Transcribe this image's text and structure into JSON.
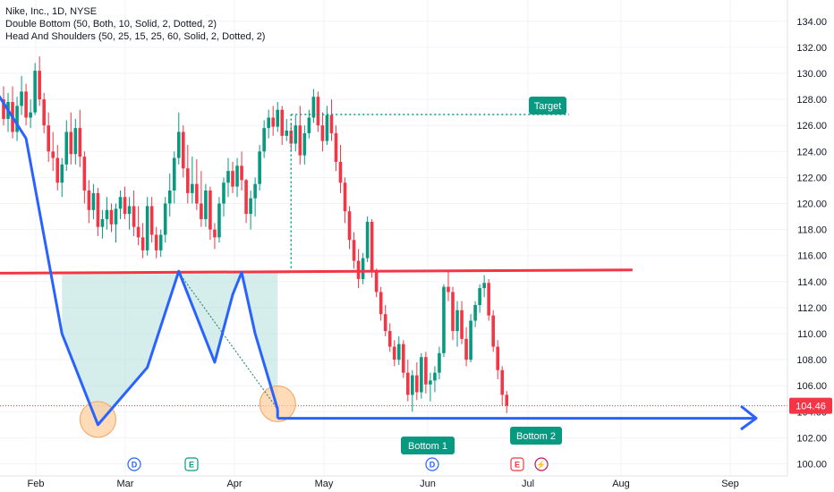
{
  "legend": {
    "title": "Nike, Inc., 1D, NYSE",
    "line1": "Double Bottom (50, Both, 10, Solid, 2, Dotted, 2)",
    "line2": "Head And Shoulders (50, 25, 15, 25, 60, Solid, 2, Dotted, 2)"
  },
  "colors": {
    "up": "#089981",
    "down": "#f23645",
    "pattern_line": "#2962ff",
    "neckline": "#f23645",
    "fill": "#b2dfdb",
    "pill": "#089981",
    "bottom_marker": "#ffcc99"
  },
  "chart_data": {
    "type": "candlestick",
    "title": "Nike, Inc., 1D, NYSE",
    "ylim": [
      99.3,
      135.0
    ],
    "y_ticks": [
      100,
      102,
      104,
      106,
      108,
      110,
      112,
      114,
      116,
      118,
      120,
      122,
      124,
      126,
      128,
      130,
      132,
      134
    ],
    "y_tick_labels": [
      "100.00",
      "102.00",
      "104.00",
      "106.00",
      "108.00",
      "110.00",
      "112.00",
      "114.00",
      "116.00",
      "118.00",
      "120.00",
      "122.00",
      "124.00",
      "126.00",
      "128.00",
      "130.00",
      "132.00",
      "134.00"
    ],
    "x_labels": [
      "Feb",
      "Mar",
      "Apr",
      "May",
      "Jun",
      "Jul",
      "Aug",
      "Sep"
    ],
    "last_price": 104.46,
    "last_price_label": "104.46",
    "candles": [
      {
        "o": 128.0,
        "h": 129.0,
        "l": 126.0,
        "c": 126.5
      },
      {
        "o": 126.5,
        "h": 128.5,
        "l": 125.5,
        "c": 127.8
      },
      {
        "o": 127.8,
        "h": 129.0,
        "l": 125.0,
        "c": 125.5
      },
      {
        "o": 125.5,
        "h": 128.2,
        "l": 124.8,
        "c": 127.5
      },
      {
        "o": 127.5,
        "h": 129.8,
        "l": 126.8,
        "c": 128.6
      },
      {
        "o": 128.6,
        "h": 129.2,
        "l": 126.0,
        "c": 126.6
      },
      {
        "o": 126.6,
        "h": 128.0,
        "l": 125.8,
        "c": 127.0
      },
      {
        "o": 127.0,
        "h": 130.8,
        "l": 126.8,
        "c": 130.2
      },
      {
        "o": 130.2,
        "h": 131.3,
        "l": 127.5,
        "c": 128.0
      },
      {
        "o": 128.0,
        "h": 128.5,
        "l": 125.4,
        "c": 126.0
      },
      {
        "o": 126.0,
        "h": 127.0,
        "l": 123.2,
        "c": 124.0
      },
      {
        "o": 124.0,
        "h": 125.5,
        "l": 122.5,
        "c": 123.5
      },
      {
        "o": 123.5,
        "h": 124.5,
        "l": 121.0,
        "c": 121.6
      },
      {
        "o": 121.6,
        "h": 123.5,
        "l": 120.5,
        "c": 123.0
      },
      {
        "o": 123.0,
        "h": 126.4,
        "l": 122.5,
        "c": 125.5
      },
      {
        "o": 125.5,
        "h": 127.0,
        "l": 123.0,
        "c": 123.8
      },
      {
        "o": 123.8,
        "h": 126.5,
        "l": 123.0,
        "c": 125.8
      },
      {
        "o": 125.8,
        "h": 127.2,
        "l": 122.8,
        "c": 123.6
      },
      {
        "o": 123.6,
        "h": 124.0,
        "l": 120.0,
        "c": 121.0
      },
      {
        "o": 121.0,
        "h": 121.8,
        "l": 118.5,
        "c": 119.5
      },
      {
        "o": 119.5,
        "h": 121.5,
        "l": 118.8,
        "c": 120.8
      },
      {
        "o": 120.8,
        "h": 121.2,
        "l": 117.5,
        "c": 118.2
      },
      {
        "o": 118.2,
        "h": 119.5,
        "l": 117.3,
        "c": 118.8
      },
      {
        "o": 118.8,
        "h": 120.5,
        "l": 118.0,
        "c": 119.5
      },
      {
        "o": 119.5,
        "h": 120.0,
        "l": 117.8,
        "c": 118.4
      },
      {
        "o": 118.4,
        "h": 120.0,
        "l": 117.0,
        "c": 119.6
      },
      {
        "o": 119.6,
        "h": 121.0,
        "l": 118.8,
        "c": 120.5
      },
      {
        "o": 120.5,
        "h": 121.3,
        "l": 118.8,
        "c": 119.2
      },
      {
        "o": 119.2,
        "h": 120.5,
        "l": 118.0,
        "c": 119.8
      },
      {
        "o": 119.8,
        "h": 121.0,
        "l": 117.5,
        "c": 118.2
      },
      {
        "o": 118.2,
        "h": 119.8,
        "l": 116.8,
        "c": 117.4
      },
      {
        "o": 117.4,
        "h": 118.5,
        "l": 115.8,
        "c": 116.4
      },
      {
        "o": 116.4,
        "h": 120.5,
        "l": 116.0,
        "c": 119.8
      },
      {
        "o": 119.8,
        "h": 120.5,
        "l": 117.0,
        "c": 117.6
      },
      {
        "o": 117.6,
        "h": 118.2,
        "l": 115.8,
        "c": 116.4
      },
      {
        "o": 116.4,
        "h": 118.0,
        "l": 115.9,
        "c": 117.6
      },
      {
        "o": 117.6,
        "h": 120.5,
        "l": 117.0,
        "c": 120.0
      },
      {
        "o": 120.0,
        "h": 122.3,
        "l": 119.0,
        "c": 121.0
      },
      {
        "o": 121.0,
        "h": 124.0,
        "l": 120.0,
        "c": 123.5
      },
      {
        "o": 123.5,
        "h": 127.0,
        "l": 123.0,
        "c": 125.5
      },
      {
        "o": 125.5,
        "h": 126.0,
        "l": 122.0,
        "c": 122.7
      },
      {
        "o": 122.7,
        "h": 124.5,
        "l": 120.0,
        "c": 120.8
      },
      {
        "o": 120.8,
        "h": 123.6,
        "l": 120.0,
        "c": 121.5
      },
      {
        "o": 121.5,
        "h": 123.4,
        "l": 119.5,
        "c": 120.0
      },
      {
        "o": 120.0,
        "h": 122.5,
        "l": 118.2,
        "c": 118.8
      },
      {
        "o": 118.8,
        "h": 121.5,
        "l": 118.2,
        "c": 121.0
      },
      {
        "o": 121.0,
        "h": 121.3,
        "l": 117.2,
        "c": 118.0
      },
      {
        "o": 118.0,
        "h": 118.5,
        "l": 116.5,
        "c": 117.4
      },
      {
        "o": 117.4,
        "h": 120.5,
        "l": 117.0,
        "c": 120.0
      },
      {
        "o": 120.0,
        "h": 122.0,
        "l": 119.0,
        "c": 121.6
      },
      {
        "o": 121.6,
        "h": 123.5,
        "l": 120.5,
        "c": 122.5
      },
      {
        "o": 122.5,
        "h": 123.2,
        "l": 120.8,
        "c": 121.3
      },
      {
        "o": 121.3,
        "h": 123.5,
        "l": 120.5,
        "c": 122.9
      },
      {
        "o": 122.9,
        "h": 124.0,
        "l": 121.0,
        "c": 121.8
      },
      {
        "o": 121.8,
        "h": 121.9,
        "l": 118.5,
        "c": 119.2
      },
      {
        "o": 119.2,
        "h": 121.0,
        "l": 118.0,
        "c": 120.4
      },
      {
        "o": 120.4,
        "h": 122.0,
        "l": 119.0,
        "c": 121.5
      },
      {
        "o": 121.5,
        "h": 124.5,
        "l": 121.0,
        "c": 124.0
      },
      {
        "o": 124.0,
        "h": 126.4,
        "l": 123.5,
        "c": 125.8
      },
      {
        "o": 125.8,
        "h": 127.2,
        "l": 125.0,
        "c": 126.6
      },
      {
        "o": 126.6,
        "h": 127.5,
        "l": 125.2,
        "c": 125.9
      },
      {
        "o": 125.9,
        "h": 127.8,
        "l": 125.5,
        "c": 127.2
      },
      {
        "o": 127.2,
        "h": 127.5,
        "l": 124.5,
        "c": 125.2
      },
      {
        "o": 125.2,
        "h": 126.5,
        "l": 124.8,
        "c": 125.6
      },
      {
        "o": 125.6,
        "h": 126.2,
        "l": 124.0,
        "c": 124.6
      },
      {
        "o": 124.6,
        "h": 126.8,
        "l": 124.0,
        "c": 126.0
      },
      {
        "o": 126.0,
        "h": 127.5,
        "l": 123.0,
        "c": 123.7
      },
      {
        "o": 123.7,
        "h": 126.0,
        "l": 123.0,
        "c": 125.4
      },
      {
        "o": 125.4,
        "h": 127.2,
        "l": 125.0,
        "c": 126.6
      },
      {
        "o": 126.6,
        "h": 128.8,
        "l": 126.2,
        "c": 128.2
      },
      {
        "o": 128.2,
        "h": 128.6,
        "l": 125.5,
        "c": 126.0
      },
      {
        "o": 126.0,
        "h": 127.0,
        "l": 124.0,
        "c": 124.8
      },
      {
        "o": 124.8,
        "h": 127.5,
        "l": 124.5,
        "c": 126.8
      },
      {
        "o": 126.8,
        "h": 128.0,
        "l": 124.8,
        "c": 125.4
      },
      {
        "o": 125.4,
        "h": 126.0,
        "l": 122.5,
        "c": 123.2
      },
      {
        "o": 123.2,
        "h": 124.5,
        "l": 120.8,
        "c": 121.6
      },
      {
        "o": 121.6,
        "h": 122.0,
        "l": 118.5,
        "c": 119.4
      },
      {
        "o": 119.4,
        "h": 119.8,
        "l": 116.5,
        "c": 117.2
      },
      {
        "o": 117.2,
        "h": 117.8,
        "l": 115.0,
        "c": 115.6
      },
      {
        "o": 115.6,
        "h": 116.5,
        "l": 113.5,
        "c": 114.2
      },
      {
        "o": 114.2,
        "h": 116.2,
        "l": 113.8,
        "c": 115.8
      },
      {
        "o": 115.8,
        "h": 119.0,
        "l": 115.5,
        "c": 118.6
      },
      {
        "o": 118.6,
        "h": 118.8,
        "l": 114.3,
        "c": 114.8
      },
      {
        "o": 114.8,
        "h": 115.0,
        "l": 112.8,
        "c": 113.2
      },
      {
        "o": 113.2,
        "h": 113.6,
        "l": 111.0,
        "c": 111.5
      },
      {
        "o": 111.5,
        "h": 112.2,
        "l": 109.8,
        "c": 110.2
      },
      {
        "o": 110.2,
        "h": 110.8,
        "l": 108.6,
        "c": 109.0
      },
      {
        "o": 109.0,
        "h": 109.5,
        "l": 107.5,
        "c": 108.0
      },
      {
        "o": 108.0,
        "h": 109.8,
        "l": 107.6,
        "c": 109.2
      },
      {
        "o": 109.2,
        "h": 109.5,
        "l": 106.6,
        "c": 107.0
      },
      {
        "o": 107.0,
        "h": 108.0,
        "l": 104.8,
        "c": 105.3
      },
      {
        "o": 105.3,
        "h": 107.2,
        "l": 104.0,
        "c": 106.8
      },
      {
        "o": 106.8,
        "h": 107.8,
        "l": 104.9,
        "c": 105.5
      },
      {
        "o": 105.5,
        "h": 108.5,
        "l": 105.0,
        "c": 108.2
      },
      {
        "o": 108.2,
        "h": 108.6,
        "l": 105.4,
        "c": 106.1
      },
      {
        "o": 106.1,
        "h": 107.0,
        "l": 104.8,
        "c": 106.4
      },
      {
        "o": 106.4,
        "h": 107.5,
        "l": 105.5,
        "c": 107.0
      },
      {
        "o": 107.0,
        "h": 109.0,
        "l": 106.5,
        "c": 108.5
      },
      {
        "o": 108.5,
        "h": 113.8,
        "l": 108.2,
        "c": 113.6
      },
      {
        "o": 113.6,
        "h": 114.8,
        "l": 112.5,
        "c": 113.2
      },
      {
        "o": 113.2,
        "h": 113.6,
        "l": 109.5,
        "c": 110.2
      },
      {
        "o": 110.2,
        "h": 112.5,
        "l": 109.0,
        "c": 111.8
      },
      {
        "o": 111.8,
        "h": 112.5,
        "l": 109.2,
        "c": 109.6
      },
      {
        "o": 109.6,
        "h": 110.5,
        "l": 107.5,
        "c": 108.0
      },
      {
        "o": 108.0,
        "h": 111.5,
        "l": 107.8,
        "c": 111.0
      },
      {
        "o": 111.0,
        "h": 112.5,
        "l": 110.5,
        "c": 112.2
      },
      {
        "o": 112.2,
        "h": 113.8,
        "l": 111.6,
        "c": 113.5
      },
      {
        "o": 113.5,
        "h": 114.5,
        "l": 112.8,
        "c": 113.9
      },
      {
        "o": 113.9,
        "h": 114.2,
        "l": 111.0,
        "c": 111.4
      },
      {
        "o": 111.4,
        "h": 111.8,
        "l": 108.6,
        "c": 109.0
      },
      {
        "o": 109.0,
        "h": 109.5,
        "l": 106.5,
        "c": 107.2
      },
      {
        "o": 107.2,
        "h": 107.5,
        "l": 104.5,
        "c": 105.3
      },
      {
        "o": 105.3,
        "h": 105.6,
        "l": 103.9,
        "c": 104.46
      }
    ],
    "double_bottom": {
      "zigzag": [
        [
          -2,
          128.8
        ],
        [
          5,
          125.0
        ],
        [
          13,
          110.0
        ],
        [
          21,
          103.0
        ],
        [
          32,
          107.4
        ],
        [
          39,
          114.8
        ],
        [
          47,
          107.8
        ],
        [
          51,
          113.0
        ],
        [
          53,
          114.7
        ],
        [
          56,
          110.0
        ],
        [
          61,
          104.2
        ]
      ],
      "bottom_1": {
        "x": 21,
        "y": 103.0,
        "label": "Bottom 1"
      },
      "bottom_2": {
        "x": 61,
        "y": 104.2,
        "label": "Bottom 2"
      },
      "horizontal_target": 103.5,
      "target_label": "Target"
    },
    "neckline": {
      "x1": -27,
      "y1": 114.6,
      "x2": 140,
      "y2": 114.9
    },
    "events": [
      {
        "label": "D",
        "kind": "dividend"
      },
      {
        "label": "E",
        "kind": "earnings"
      },
      {
        "label": "D",
        "kind": "dividend"
      },
      {
        "label": "E",
        "kind": "earnings"
      },
      {
        "label": "⚡",
        "kind": "split"
      }
    ]
  }
}
